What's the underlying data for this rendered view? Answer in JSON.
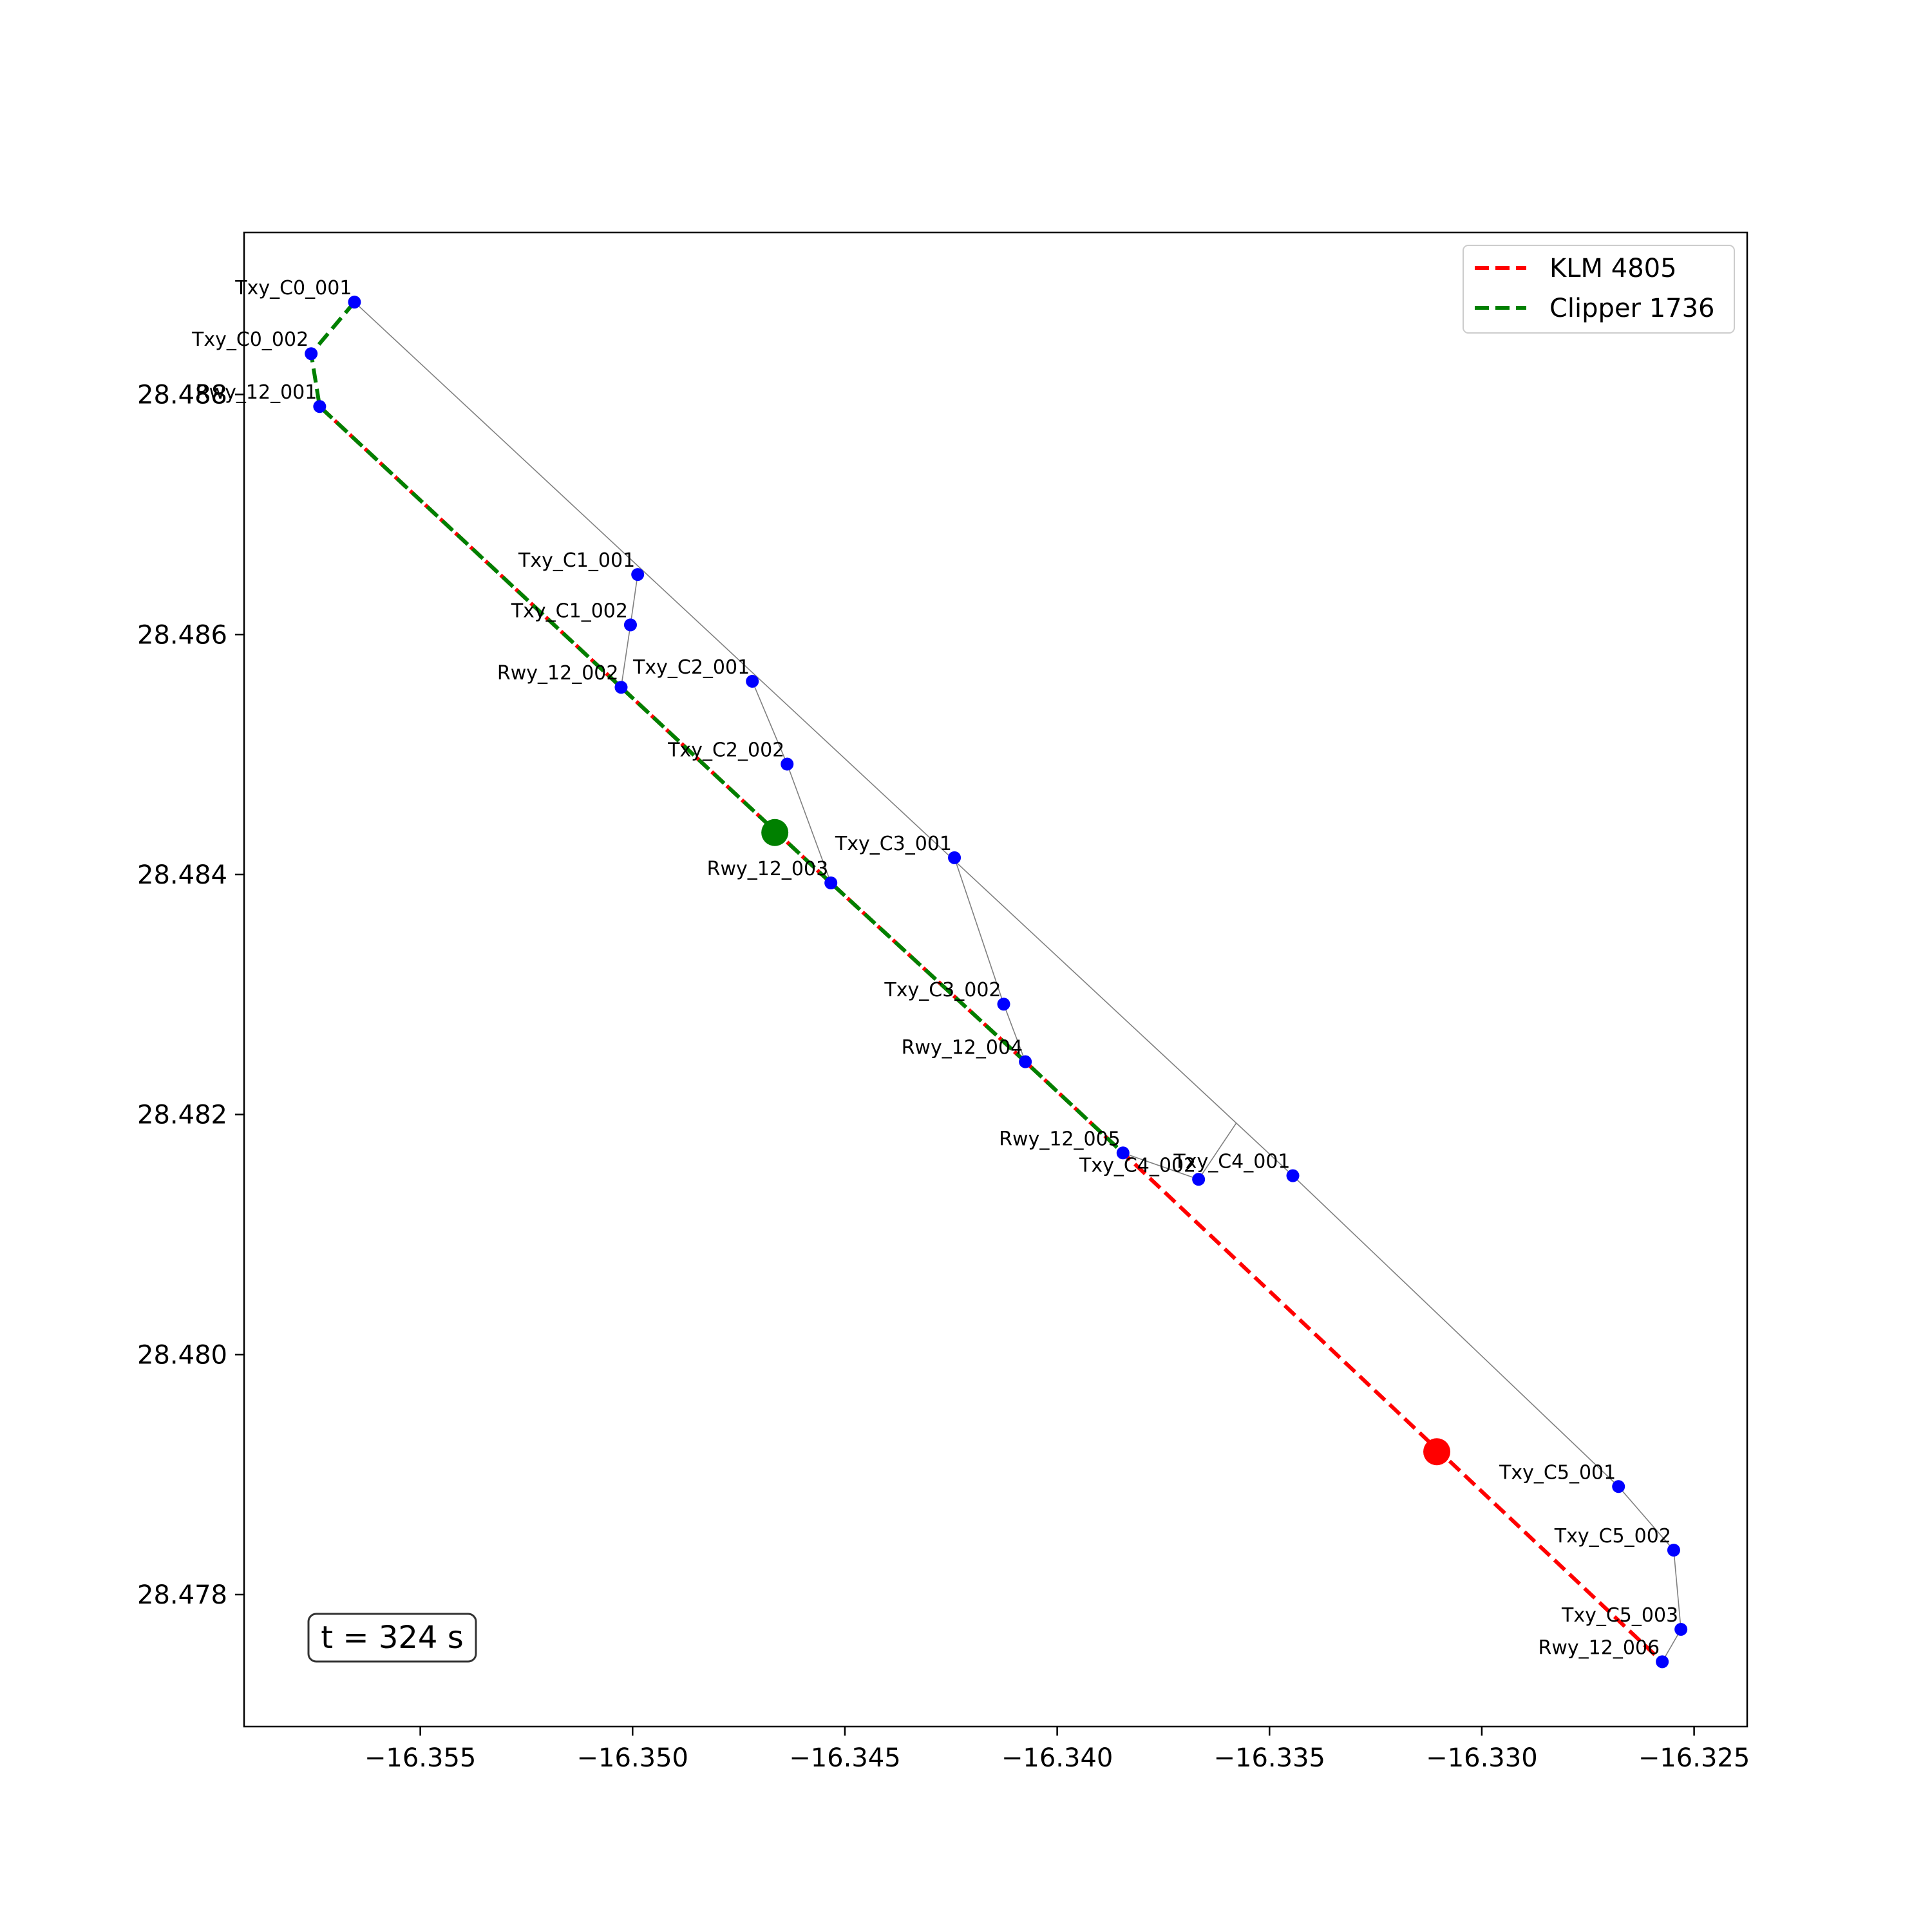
{
  "chart_data": {
    "type": "scatter",
    "title": "",
    "xlabel": "",
    "ylabel": "",
    "xlim": [
      -16.35915,
      -16.32375
    ],
    "ylim": [
      28.4769,
      28.48935
    ],
    "xticks": [
      -16.355,
      -16.35,
      -16.345,
      -16.34,
      -16.335,
      -16.33,
      -16.325
    ],
    "xtick_labels": [
      "−16.355",
      "−16.350",
      "−16.345",
      "−16.340",
      "−16.335",
      "−16.330",
      "−16.325"
    ],
    "yticks": [
      28.478,
      28.48,
      28.482,
      28.484,
      28.486,
      28.488
    ],
    "ytick_labels": [
      "28.478",
      "28.480",
      "28.482",
      "28.484",
      "28.486",
      "28.488"
    ],
    "grid": false,
    "legend_position": "top-right",
    "nodes": [
      {
        "id": "Txy_C0_001",
        "x": -16.35655,
        "y": 28.48877
      },
      {
        "id": "Txy_C0_002",
        "x": -16.35757,
        "y": 28.48834
      },
      {
        "id": "Rwy_12_001",
        "x": -16.35737,
        "y": 28.4879
      },
      {
        "id": "Txy_C1_001",
        "x": -16.34988,
        "y": 28.4865
      },
      {
        "id": "Txy_C1_002",
        "x": -16.35005,
        "y": 28.48608
      },
      {
        "id": "Rwy_12_002",
        "x": -16.35027,
        "y": 28.48556
      },
      {
        "id": "Txy_C2_001",
        "x": -16.34718,
        "y": 28.48561
      },
      {
        "id": "Txy_C2_002",
        "x": -16.34636,
        "y": 28.48492
      },
      {
        "id": "Rwy_12_003",
        "x": -16.34533,
        "y": 28.48393
      },
      {
        "id": "Txy_C3_001",
        "x": -16.34242,
        "y": 28.48414
      },
      {
        "id": "Txy_C3_002",
        "x": -16.34126,
        "y": 28.48292
      },
      {
        "id": "Rwy_12_004",
        "x": -16.34075,
        "y": 28.48244
      },
      {
        "id": "Rwy_12_005",
        "x": -16.33845,
        "y": 28.48168
      },
      {
        "id": "Txy_C4_002",
        "x": -16.33667,
        "y": 28.48146
      },
      {
        "id": "Txy_C4_001",
        "x": -16.33445,
        "y": 28.48149
      },
      {
        "id": "Txy_C5_001",
        "x": -16.32678,
        "y": 28.4789
      },
      {
        "id": "Txy_C5_002",
        "x": -16.32548,
        "y": 28.47837
      },
      {
        "id": "Txy_C5_003",
        "x": -16.32531,
        "y": 28.47771
      },
      {
        "id": "Rwy_12_006",
        "x": -16.32575,
        "y": 28.47744
      }
    ],
    "edges": [
      [
        -16.35655,
        28.48877,
        -16.33445,
        28.48149
      ],
      [
        -16.33445,
        28.48149,
        -16.32678,
        28.4789
      ],
      [
        -16.32678,
        28.4789,
        -16.32548,
        28.47837
      ],
      [
        -16.32548,
        28.47837,
        -16.32531,
        28.47771
      ],
      [
        -16.32531,
        28.47771,
        -16.32575,
        28.47744
      ],
      [
        -16.34988,
        28.4865,
        -16.35005,
        28.48608
      ],
      [
        -16.35005,
        28.48608,
        -16.35027,
        28.48556
      ],
      [
        -16.34718,
        28.48561,
        -16.34636,
        28.48492
      ],
      [
        -16.34636,
        28.48492,
        -16.34533,
        28.48393
      ],
      [
        -16.34242,
        28.48414,
        -16.34126,
        28.48292
      ],
      [
        -16.34126,
        28.48292,
        -16.34075,
        28.48244
      ],
      [
        -16.33845,
        28.48168,
        -16.33667,
        28.48146
      ],
      [
        -16.33667,
        28.48146,
        -16.33578,
        28.48193
      ]
    ],
    "series": [
      {
        "name": "KLM 4805",
        "color": "#ff0000",
        "path": [
          [
            -16.35737,
            28.4879
          ],
          [
            -16.35027,
            28.48556
          ],
          [
            -16.34533,
            28.48393
          ],
          [
            -16.34075,
            28.48244
          ],
          [
            -16.33845,
            28.48168
          ],
          [
            -16.32575,
            28.47744
          ]
        ],
        "position": [
          -16.33106,
          28.47919
        ]
      },
      {
        "name": "Clipper 1736",
        "color": "#008000",
        "path": [
          [
            -16.35655,
            28.48877
          ],
          [
            -16.35757,
            28.48834
          ],
          [
            -16.35737,
            28.4879
          ],
          [
            -16.35027,
            28.48556
          ],
          [
            -16.34533,
            28.48393
          ],
          [
            -16.34075,
            28.48244
          ],
          [
            -16.33845,
            28.48168
          ]
        ],
        "position": [
          -16.34665,
          28.48435
        ]
      }
    ],
    "annotation": "t = 324 s",
    "node_color": "#0000ff",
    "edge_color": "#808080"
  }
}
